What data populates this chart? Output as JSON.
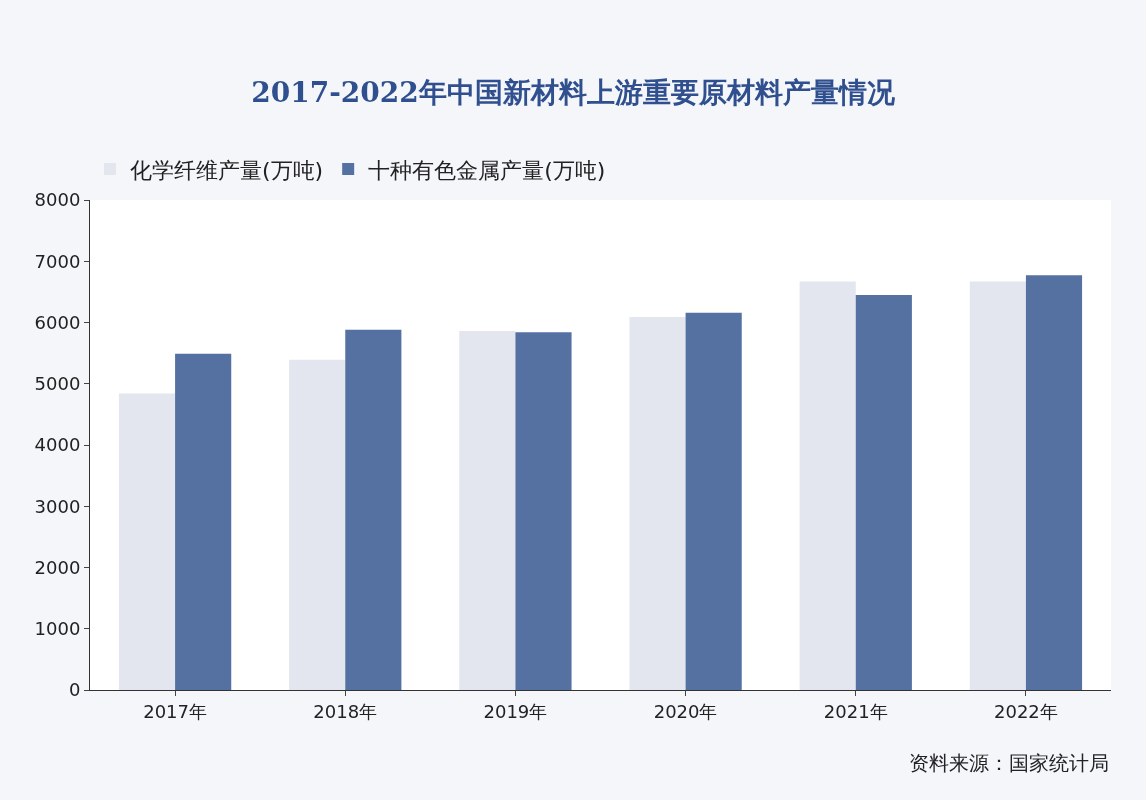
{
  "chart_data": {
    "type": "bar",
    "title": "2017-2022年中国新材料上游重要原材料产量情况",
    "categories": [
      "2017年",
      "2018年",
      "2019年",
      "2020年",
      "2021年",
      "2022年"
    ],
    "series": [
      {
        "name": "化学纤维产量(万吨)",
        "color": "#e3e6ef",
        "values": [
          4840,
          5390,
          5860,
          6090,
          6670,
          6670
        ]
      },
      {
        "name": "十种有色金属产量(万吨)",
        "color": "#5571a1",
        "values": [
          5490,
          5880,
          5840,
          6160,
          6450,
          6770
        ]
      }
    ],
    "ylim": [
      0,
      8000
    ],
    "yticks": [
      0,
      1000,
      2000,
      3000,
      4000,
      5000,
      6000,
      7000,
      8000
    ],
    "legend": "top",
    "annotations": [
      "资料来源：国家统计局"
    ]
  }
}
